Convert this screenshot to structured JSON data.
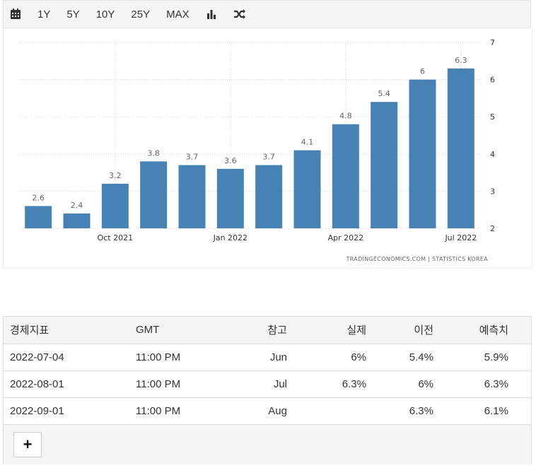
{
  "toolbar": {
    "items": [
      {
        "name": "calendar-icon",
        "label": ""
      },
      {
        "name": "range-1y",
        "label": "1Y"
      },
      {
        "name": "range-5y",
        "label": "5Y"
      },
      {
        "name": "range-10y",
        "label": "10Y"
      },
      {
        "name": "range-25y",
        "label": "25Y"
      },
      {
        "name": "range-max",
        "label": "MAX"
      },
      {
        "name": "bar-chart-icon",
        "label": ""
      },
      {
        "name": "shuffle-icon",
        "label": ""
      }
    ]
  },
  "chart_data": {
    "type": "bar",
    "categories": [
      "2021-08",
      "2021-09",
      "2021-10",
      "2021-11",
      "2021-12",
      "2022-01",
      "2022-02",
      "2022-03",
      "2022-04",
      "2022-05",
      "2022-06",
      "2022-07"
    ],
    "values": [
      2.6,
      2.4,
      3.2,
      3.8,
      3.7,
      3.6,
      3.7,
      4.1,
      4.8,
      5.4,
      6,
      6.3
    ],
    "value_labels": [
      "2.6",
      "2.4",
      "3.2",
      "3.8",
      "3.7",
      "3.6",
      "3.7",
      "4.1",
      "4.8",
      "5.4",
      "6",
      "6.3"
    ],
    "x_tick_labels": [
      {
        "category": "2021-10",
        "label": "Oct 2021"
      },
      {
        "category": "2022-01",
        "label": "Jan 2022"
      },
      {
        "category": "2022-04",
        "label": "Apr 2022"
      },
      {
        "category": "2022-07",
        "label": "Jul 2022"
      }
    ],
    "yticks": [
      "2",
      "3",
      "4",
      "5",
      "6",
      "7"
    ],
    "ylim": [
      2,
      7
    ],
    "grid": true,
    "bar_color": "#4682b4",
    "source": "TRADINGECONOMICS.COM  |  STATISTICS KOREA"
  },
  "table": {
    "headers": [
      "경제지표",
      "GMT",
      "참고",
      "실제",
      "이전",
      "예측치"
    ],
    "rows": [
      [
        "2022-07-04",
        "11:00 PM",
        "Jun",
        "6%",
        "5.4%",
        "5.9%"
      ],
      [
        "2022-08-01",
        "11:00 PM",
        "Jul",
        "6.3%",
        "6%",
        "6.3%"
      ],
      [
        "2022-09-01",
        "11:00 PM",
        "Aug",
        "",
        "6.3%",
        "6.1%"
      ]
    ],
    "more_label": "+"
  }
}
